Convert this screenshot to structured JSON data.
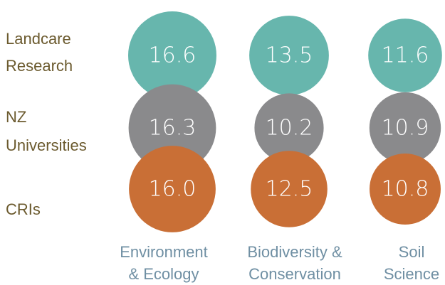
{
  "chart_data": {
    "type": "bubble-matrix",
    "title": "",
    "rows": [
      {
        "name": "Landcare Research",
        "lines": [
          "Landcare",
          "Research"
        ],
        "color": "#67b6ad"
      },
      {
        "name": "NZ Universities",
        "lines": [
          "NZ",
          "Universities"
        ],
        "color": "#8a8a8c"
      },
      {
        "name": "CRIs",
        "lines": [
          "CRIs"
        ],
        "color": "#c96f36"
      }
    ],
    "categories": [
      {
        "name": "Environment & Ecology",
        "lines": [
          "Environment",
          "& Ecology"
        ]
      },
      {
        "name": "Biodiversity & Conservation",
        "lines": [
          "Biodiversity &",
          "Conservation"
        ]
      },
      {
        "name": "Soil Science",
        "lines": [
          "Soil",
          "Science"
        ]
      }
    ],
    "series": [
      {
        "name": "Landcare Research",
        "values": [
          16.6,
          13.5,
          11.6
        ]
      },
      {
        "name": "NZ Universities",
        "values": [
          16.3,
          10.2,
          10.9
        ]
      },
      {
        "name": "CRIs",
        "values": [
          16.0,
          12.5,
          10.8
        ]
      }
    ],
    "value_labels": [
      [
        "16.6",
        "13.5",
        "11.6"
      ],
      [
        "16.3",
        "10.2",
        "10.9"
      ],
      [
        "16.0",
        "12.5",
        "10.8"
      ]
    ]
  }
}
